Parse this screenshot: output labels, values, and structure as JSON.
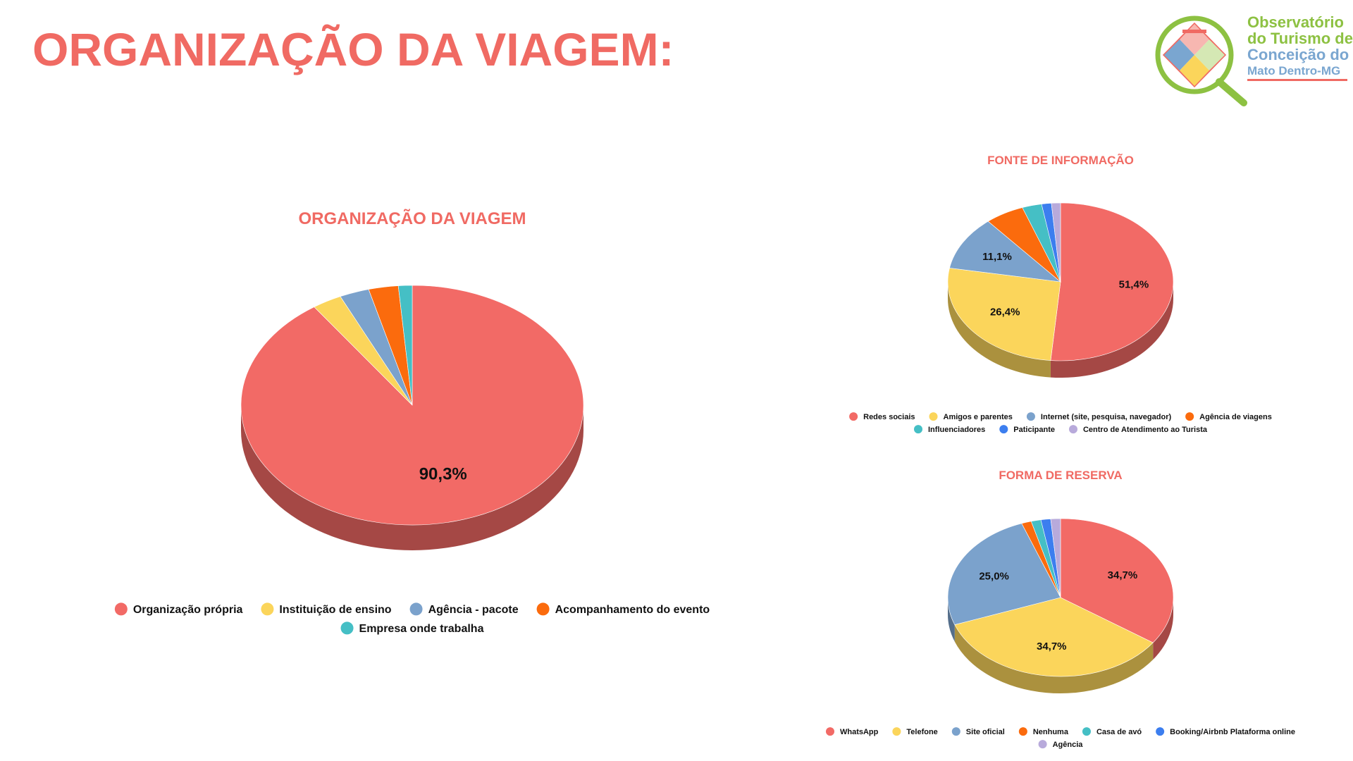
{
  "page": {
    "title": "ORGANIZAÇÃO DA VIAGEM:"
  },
  "logo": {
    "line1": "Observatório",
    "line2": "do Turismo de",
    "line3": "Conceição do",
    "line4": "Mato Dentro-MG"
  },
  "chart_data": [
    {
      "type": "pie",
      "title": "ORGANIZAÇÃO DA VIAGEM",
      "categories": [
        "Organização própria",
        "Instituição de ensino",
        "Agência - pacote",
        "Acompanhamento do evento",
        "Empresa onde trabalha"
      ],
      "values": [
        90.3,
        2.8,
        2.8,
        2.8,
        1.3
      ],
      "data_labels": [
        "90,3%",
        "",
        "",
        "",
        ""
      ],
      "colors": [
        "#f26a66",
        "#fbd55b",
        "#7ba2cc",
        "#fb6b0d",
        "#45bfc5"
      ],
      "legend": "bottom",
      "style": "3d"
    },
    {
      "type": "pie",
      "title": "FONTE DE INFORMAÇÃO",
      "categories": [
        "Redes sociais",
        "Amigos e parentes",
        "Internet (site, pesquisa, navegador)",
        "Agência de viagens",
        "Influenciadores",
        "Paticipante",
        "Centro de Atendimento ao Turista"
      ],
      "values": [
        51.4,
        26.4,
        11.1,
        5.6,
        2.8,
        1.4,
        1.3
      ],
      "data_labels": [
        "51,4%",
        "26,4%",
        "11,1%",
        "",
        "",
        "",
        ""
      ],
      "colors": [
        "#f26a66",
        "#fbd55b",
        "#7ba2cc",
        "#fb6b0d",
        "#45bfc5",
        "#3c7eef",
        "#b8aadb"
      ],
      "legend": "bottom",
      "style": "3d"
    },
    {
      "type": "pie",
      "title": "FORMA DE RESERVA",
      "categories": [
        "WhatsApp",
        "Telefone",
        "Site oficial",
        "Nenhuma",
        "Casa de avó",
        "Booking/Airbnb Plataforma online",
        "Agência"
      ],
      "values": [
        34.7,
        34.7,
        25.0,
        1.4,
        1.4,
        1.4,
        1.4
      ],
      "data_labels": [
        "34,7%",
        "34,7%",
        "25,0%",
        "",
        "",
        "",
        ""
      ],
      "colors": [
        "#f26a66",
        "#fbd55b",
        "#7ba2cc",
        "#fb6b0d",
        "#45bfc5",
        "#3c7eef",
        "#b8aadb"
      ],
      "legend": "bottom",
      "style": "3d"
    }
  ]
}
